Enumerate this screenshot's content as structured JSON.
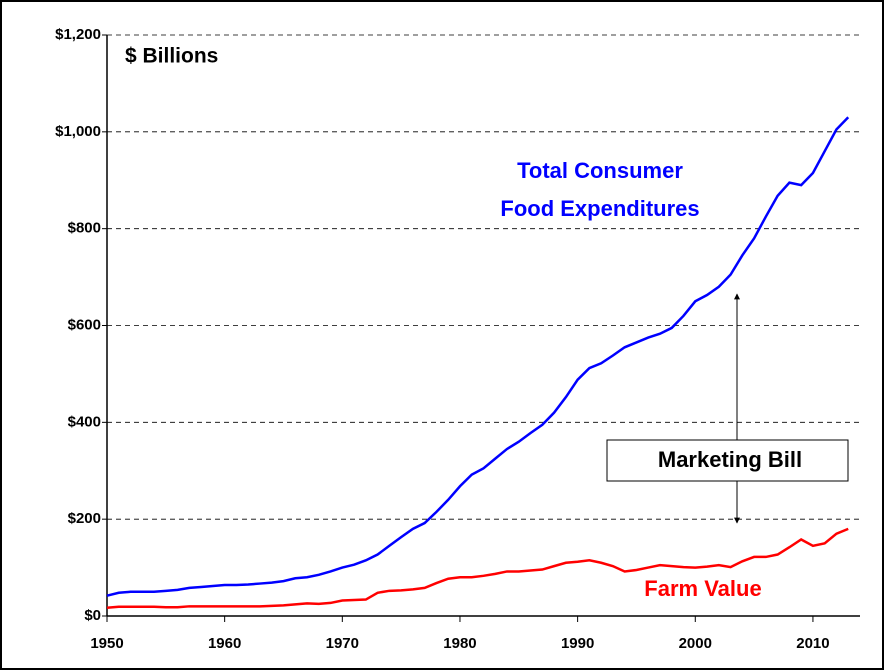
{
  "chart_data": {
    "type": "line",
    "annotation": "$ Billions",
    "callout": "Marketing Bill",
    "x": [
      1950,
      1951,
      1952,
      1953,
      1954,
      1955,
      1956,
      1957,
      1958,
      1959,
      1960,
      1961,
      1962,
      1963,
      1964,
      1965,
      1966,
      1967,
      1968,
      1969,
      1970,
      1971,
      1972,
      1973,
      1974,
      1975,
      1976,
      1977,
      1978,
      1979,
      1980,
      1981,
      1982,
      1983,
      1984,
      1985,
      1986,
      1987,
      1988,
      1989,
      1990,
      1991,
      1992,
      1993,
      1994,
      1995,
      1996,
      1997,
      1998,
      1999,
      2000,
      2001,
      2002,
      2003,
      2004,
      2005,
      2006,
      2007,
      2008,
      2009,
      2010,
      2011,
      2012,
      2013
    ],
    "series": [
      {
        "label": [
          "Total Consumer",
          "Food Expenditures"
        ],
        "color": "#0000ff",
        "values": [
          42,
          48,
          50,
          50,
          50,
          52,
          54,
          58,
          60,
          62,
          64,
          64,
          65,
          67,
          69,
          72,
          78,
          80,
          85,
          92,
          100,
          106,
          115,
          127,
          145,
          163,
          180,
          192,
          215,
          240,
          268,
          292,
          305,
          325,
          345,
          360,
          378,
          395,
          420,
          452,
          488,
          512,
          522,
          538,
          555,
          565,
          575,
          583,
          595,
          620,
          650,
          663,
          680,
          705,
          745,
          780,
          825,
          868,
          895,
          890,
          915,
          960,
          1005,
          1030
        ]
      },
      {
        "label": [
          "Farm Value"
        ],
        "color": "#ff0000",
        "values": [
          17,
          19,
          19,
          19,
          19,
          18,
          18,
          20,
          20,
          20,
          20,
          20,
          20,
          20,
          21,
          22,
          24,
          26,
          25,
          27,
          32,
          33,
          34,
          48,
          52,
          53,
          55,
          58,
          68,
          77,
          80,
          80,
          83,
          87,
          92,
          92,
          94,
          96,
          103,
          110,
          112,
          115,
          110,
          103,
          92,
          95,
          100,
          105,
          103,
          101,
          100,
          102,
          105,
          101,
          113,
          122,
          122,
          127,
          142,
          158,
          145,
          150,
          170,
          180
        ]
      }
    ],
    "xlim": [
      1950,
      2014
    ],
    "xticks": [
      1950,
      1960,
      1970,
      1980,
      1990,
      2000,
      2010
    ],
    "ylim": [
      0,
      1200
    ],
    "yticks": [
      {
        "value": 0,
        "label": "$0"
      },
      {
        "value": 200,
        "label": "$200"
      },
      {
        "value": 400,
        "label": "$400"
      },
      {
        "value": 600,
        "label": "$600"
      },
      {
        "value": 800,
        "label": "$800"
      },
      {
        "value": 1000,
        "label": "$1,000"
      },
      {
        "value": 1200,
        "label": "$1,200"
      }
    ],
    "grid": true
  }
}
